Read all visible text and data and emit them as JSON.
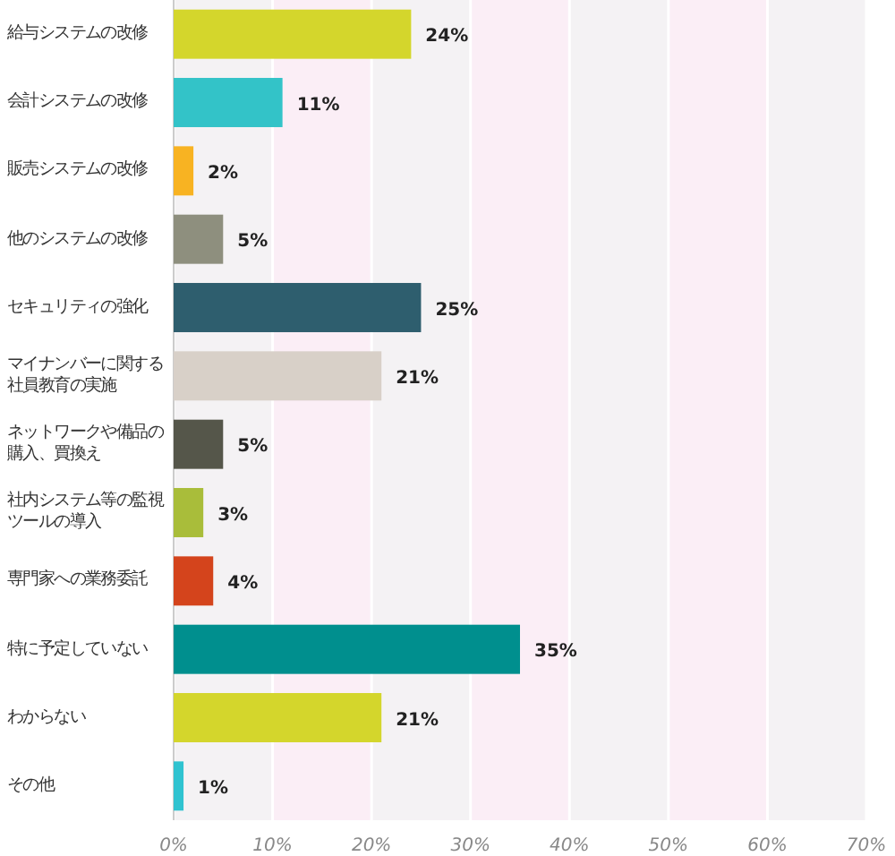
{
  "chart_data": {
    "type": "bar",
    "orientation": "horizontal",
    "categories": [
      "給与システムの改修",
      "会計システムの改修",
      "販売システムの改修",
      "他のシステムの改修",
      "セキュリティの強化",
      "マイナンバーに関する社員教育の実施",
      "ネットワークや備品の購入、買換え",
      "社内システム等の監視ツールの導入",
      "専門家への業務委託",
      "特に予定していない",
      "わからない",
      "その他"
    ],
    "values": [
      24,
      11,
      2,
      5,
      25,
      21,
      5,
      3,
      4,
      35,
      21,
      1
    ],
    "value_labels": [
      "24%",
      "11%",
      "2%",
      "5%",
      "25%",
      "21%",
      "5%",
      "3%",
      "4%",
      "35%",
      "21%",
      "1%"
    ],
    "colors": [
      "#d4d62c",
      "#33c3c8",
      "#f8b322",
      "#8e8f7e",
      "#2e5e6e",
      "#d8d0c8",
      "#55564a",
      "#a9bd3a",
      "#d4441c",
      "#008f8e",
      "#d4d62c",
      "#30c3d0"
    ],
    "xlim": [
      0,
      70
    ],
    "xticks": [
      {
        "value": 0,
        "label": "0%"
      },
      {
        "value": 10,
        "label": "10%"
      },
      {
        "value": 20,
        "label": "20%"
      },
      {
        "value": 30,
        "label": "30%"
      },
      {
        "value": 40,
        "label": "40%"
      },
      {
        "value": 50,
        "label": "50%"
      },
      {
        "value": 60,
        "label": "60%"
      },
      {
        "value": 70,
        "label": "70%"
      }
    ],
    "grid": "x"
  }
}
